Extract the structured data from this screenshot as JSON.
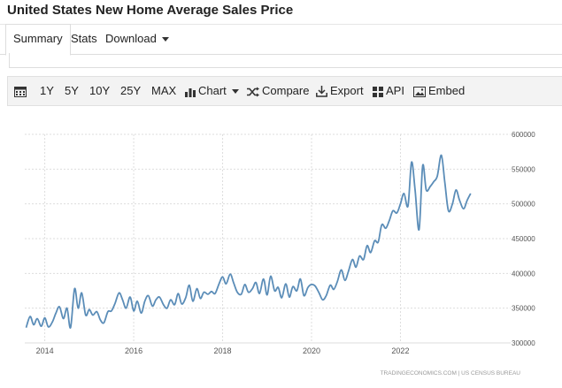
{
  "page_title": "United States New Home Average Sales Price",
  "tabs": [
    {
      "label": "Summary"
    },
    {
      "label": "Stats"
    },
    {
      "label": "Download"
    }
  ],
  "toolbar": {
    "ranges": [
      "1Y",
      "5Y",
      "10Y",
      "25Y",
      "MAX"
    ],
    "chart_label": "Chart",
    "compare_label": "Compare",
    "export_label": "Export",
    "api_label": "API",
    "embed_label": "Embed"
  },
  "source_note": "TRADINGECONOMICS.COM | US CENSUS BUREAU",
  "colors": {
    "line": "#5b8db8",
    "grid": "#dddddd",
    "axis_text": "#555555"
  },
  "chart_data": {
    "type": "line",
    "title": "",
    "xlabel": "",
    "ylabel": "",
    "x_ticks": [
      "2014",
      "2016",
      "2018",
      "2020",
      "2022"
    ],
    "y_ticks": [
      300000,
      350000,
      400000,
      450000,
      500000,
      550000,
      600000
    ],
    "xlim": [
      2013.55,
      2024.4
    ],
    "ylim": [
      300000,
      600000
    ],
    "grid": true,
    "y_axis_side": "right",
    "series": [
      {
        "values": [
          [
            2013.58,
            322000
          ],
          [
            2013.67,
            338000
          ],
          [
            2013.75,
            326000
          ],
          [
            2013.83,
            335000
          ],
          [
            2013.92,
            324000
          ],
          [
            2014.0,
            336000
          ],
          [
            2014.08,
            323000
          ],
          [
            2014.17,
            330000
          ],
          [
            2014.25,
            343000
          ],
          [
            2014.33,
            352000
          ],
          [
            2014.42,
            335000
          ],
          [
            2014.5,
            350000
          ],
          [
            2014.58,
            322000
          ],
          [
            2014.67,
            378000
          ],
          [
            2014.75,
            350000
          ],
          [
            2014.83,
            372000
          ],
          [
            2014.92,
            340000
          ],
          [
            2015.0,
            348000
          ],
          [
            2015.08,
            340000
          ],
          [
            2015.17,
            345000
          ],
          [
            2015.25,
            333000
          ],
          [
            2015.33,
            329000
          ],
          [
            2015.42,
            345000
          ],
          [
            2015.5,
            346000
          ],
          [
            2015.58,
            357000
          ],
          [
            2015.67,
            372000
          ],
          [
            2015.75,
            362000
          ],
          [
            2015.83,
            350000
          ],
          [
            2015.92,
            366000
          ],
          [
            2016.0,
            346000
          ],
          [
            2016.08,
            360000
          ],
          [
            2016.17,
            343000
          ],
          [
            2016.25,
            360000
          ],
          [
            2016.33,
            368000
          ],
          [
            2016.42,
            353000
          ],
          [
            2016.5,
            362000
          ],
          [
            2016.58,
            366000
          ],
          [
            2016.67,
            355000
          ],
          [
            2016.75,
            350000
          ],
          [
            2016.83,
            362000
          ],
          [
            2016.92,
            355000
          ],
          [
            2017.0,
            371000
          ],
          [
            2017.08,
            356000
          ],
          [
            2017.17,
            365000
          ],
          [
            2017.25,
            383000
          ],
          [
            2017.33,
            360000
          ],
          [
            2017.42,
            378000
          ],
          [
            2017.5,
            364000
          ],
          [
            2017.58,
            373000
          ],
          [
            2017.67,
            370000
          ],
          [
            2017.75,
            374000
          ],
          [
            2017.83,
            371000
          ],
          [
            2017.92,
            385000
          ],
          [
            2018.0,
            395000
          ],
          [
            2018.08,
            385000
          ],
          [
            2018.17,
            399000
          ],
          [
            2018.25,
            386000
          ],
          [
            2018.33,
            373000
          ],
          [
            2018.42,
            370000
          ],
          [
            2018.5,
            384000
          ],
          [
            2018.58,
            373000
          ],
          [
            2018.67,
            378000
          ],
          [
            2018.75,
            387000
          ],
          [
            2018.83,
            371000
          ],
          [
            2018.92,
            392000
          ],
          [
            2019.0,
            369000
          ],
          [
            2019.08,
            396000
          ],
          [
            2019.17,
            375000
          ],
          [
            2019.25,
            380000
          ],
          [
            2019.33,
            365000
          ],
          [
            2019.42,
            385000
          ],
          [
            2019.5,
            366000
          ],
          [
            2019.58,
            381000
          ],
          [
            2019.67,
            375000
          ],
          [
            2019.75,
            392000
          ],
          [
            2019.83,
            368000
          ],
          [
            2019.92,
            380000
          ],
          [
            2020.0,
            384000
          ],
          [
            2020.08,
            382000
          ],
          [
            2020.17,
            372000
          ],
          [
            2020.25,
            362000
          ],
          [
            2020.33,
            368000
          ],
          [
            2020.42,
            383000
          ],
          [
            2020.5,
            377000
          ],
          [
            2020.58,
            388000
          ],
          [
            2020.67,
            405000
          ],
          [
            2020.75,
            390000
          ],
          [
            2020.83,
            403000
          ],
          [
            2020.92,
            420000
          ],
          [
            2021.0,
            409000
          ],
          [
            2021.08,
            425000
          ],
          [
            2021.17,
            420000
          ],
          [
            2021.25,
            440000
          ],
          [
            2021.33,
            430000
          ],
          [
            2021.42,
            447000
          ],
          [
            2021.5,
            445000
          ],
          [
            2021.58,
            470000
          ],
          [
            2021.67,
            465000
          ],
          [
            2021.75,
            476000
          ],
          [
            2021.83,
            490000
          ],
          [
            2021.92,
            487000
          ],
          [
            2022.0,
            500000
          ],
          [
            2022.08,
            515000
          ],
          [
            2022.17,
            497000
          ],
          [
            2022.25,
            560000
          ],
          [
            2022.33,
            520000
          ],
          [
            2022.42,
            463000
          ],
          [
            2022.5,
            555000
          ],
          [
            2022.58,
            520000
          ],
          [
            2022.67,
            525000
          ],
          [
            2022.75,
            532000
          ],
          [
            2022.83,
            540000
          ],
          [
            2022.92,
            570000
          ],
          [
            2023.0,
            530000
          ],
          [
            2023.08,
            490000
          ],
          [
            2023.17,
            500000
          ],
          [
            2023.25,
            520000
          ],
          [
            2023.33,
            505000
          ],
          [
            2023.42,
            493000
          ],
          [
            2023.5,
            505000
          ],
          [
            2023.58,
            515000
          ]
        ]
      }
    ]
  }
}
